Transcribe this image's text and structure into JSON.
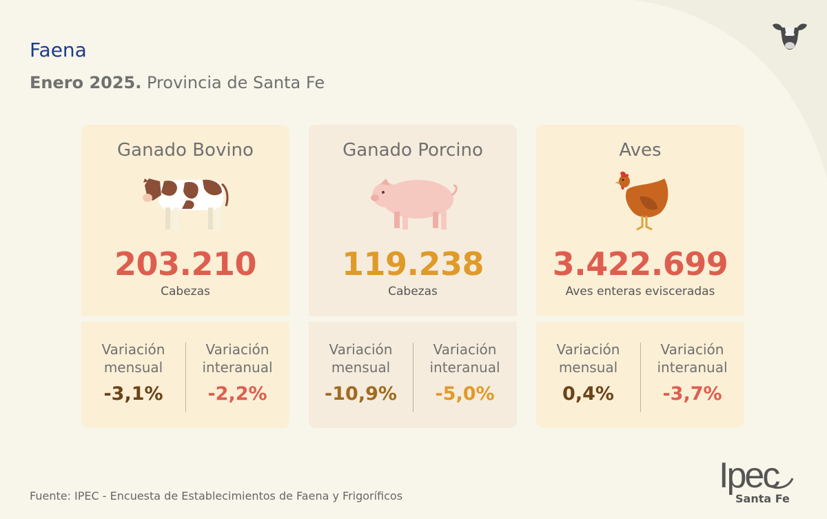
{
  "header": {
    "title": "Faena",
    "subtitle_bold": "Enero 2025.",
    "subtitle_rest": " Provincia de Santa Fe"
  },
  "cards": [
    {
      "name": "Ganado Bovino",
      "icon": "cow-icon",
      "value": "203.210",
      "unit": "Cabezas",
      "value_color": "#dd5e4f",
      "monthly_label": "Variación mensual",
      "monthly_value": "-3,1%",
      "monthly_color": "#6b4419",
      "yearly_label": "Variación interanual",
      "yearly_value": "-2,2%",
      "yearly_color": "#dd5e4f"
    },
    {
      "name": "Ganado Porcino",
      "icon": "pig-icon",
      "value": "119.238",
      "unit": "Cabezas",
      "value_color": "#e09a2a",
      "monthly_label": "Variación mensual",
      "monthly_value": "-10,9%",
      "monthly_color": "#a06a20",
      "yearly_label": "Variación interanual",
      "yearly_value": "-5,0%",
      "yearly_color": "#e09a2a"
    },
    {
      "name": "Aves",
      "icon": "hen-icon",
      "value": "3.422.699",
      "unit": "Aves enteras evisceradas",
      "value_color": "#dd5e4f",
      "monthly_label": "Variación mensual",
      "monthly_value": "0,4%",
      "monthly_color": "#6b4419",
      "yearly_label": "Variación interanual",
      "yearly_value": "-3,7%",
      "yearly_color": "#dd5e4f"
    }
  ],
  "footer": {
    "source": "Fuente: IPEC - Encuesta de Establecimientos de Faena y Frigoríficos"
  },
  "logo": {
    "name": "Ipec",
    "sub": "Santa Fe"
  },
  "corner_icon": "cow-head-icon"
}
